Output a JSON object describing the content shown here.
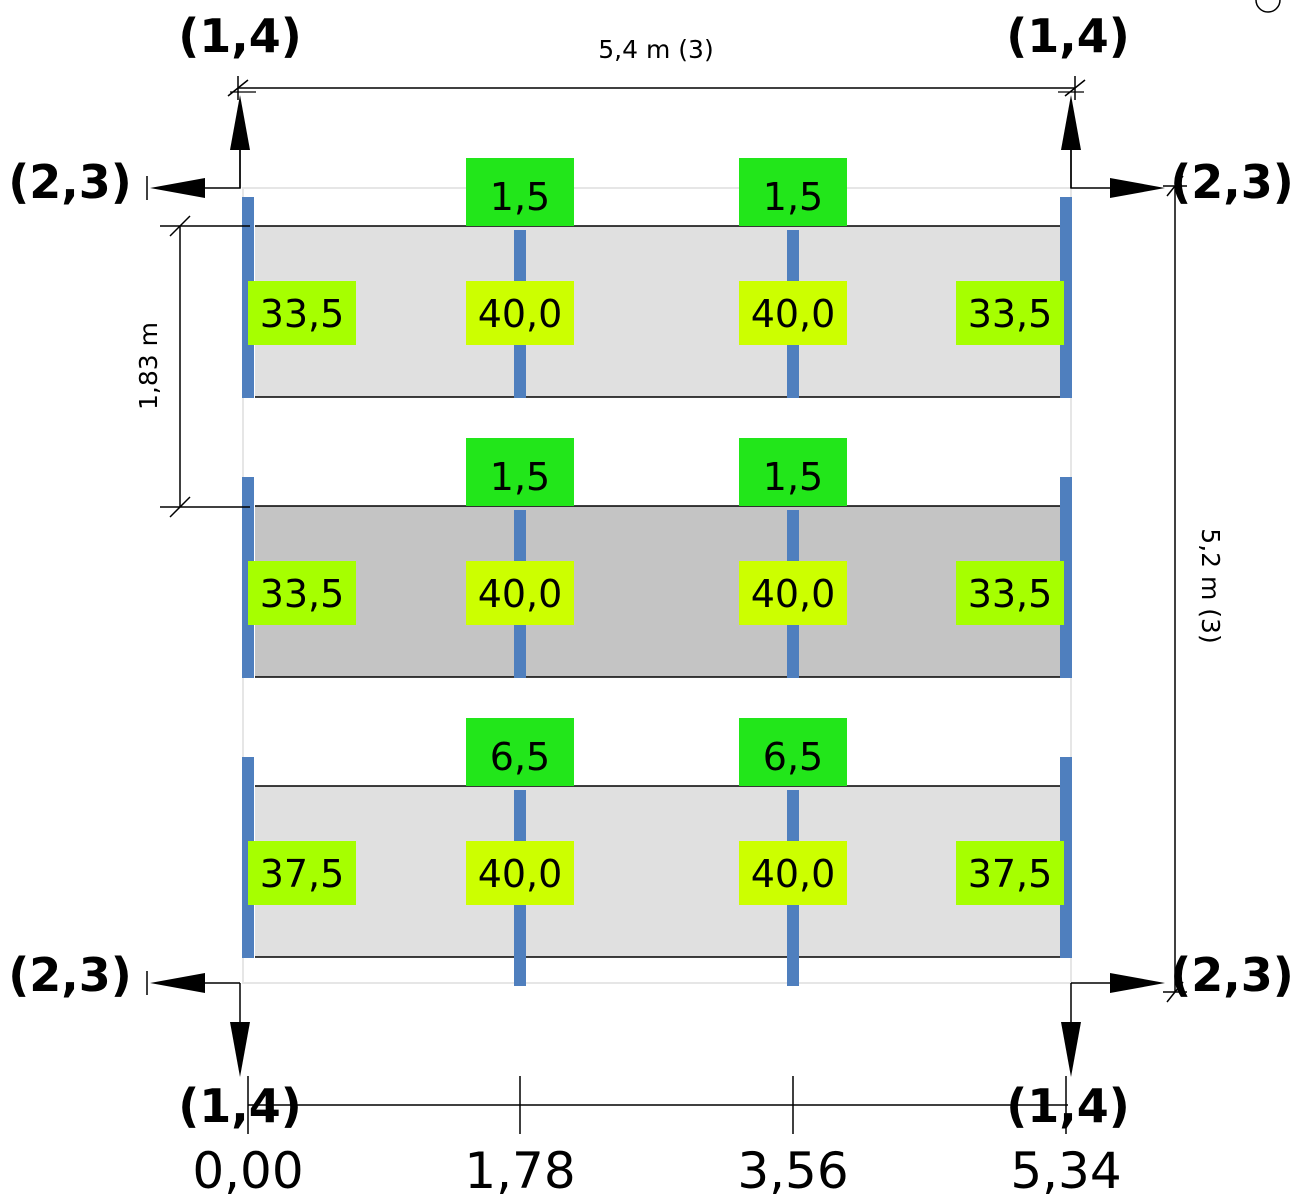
{
  "corner_labels": {
    "top_left_vertical": "(1,4)",
    "top_right_vertical": "(1,4)",
    "top_left_horizontal": "(2,3)",
    "top_right_horizontal": "(2,3)",
    "bottom_left_horizontal": "(2,3)",
    "bottom_right_horizontal": "(2,3)",
    "bottom_left_vertical": "(1,4)",
    "bottom_right_vertical": "(1,4)"
  },
  "dimensions": {
    "width_label": "5,4 m (3)",
    "height_label": "5,2 m (3)",
    "spacing_label": "1,83 m"
  },
  "strips": [
    {
      "shade": "#e0e0e0",
      "edge_loads": [
        "33,5",
        "33,5"
      ],
      "mid_loads": [
        "40,0",
        "40,0"
      ],
      "top_loads": [
        "1,5",
        "1,5"
      ]
    },
    {
      "shade": "#c4c4c4",
      "edge_loads": [
        "33,5",
        "33,5"
      ],
      "mid_loads": [
        "40,0",
        "40,0"
      ],
      "top_loads": [
        "1,5",
        "1,5"
      ]
    },
    {
      "shade": "#e0e0e0",
      "edge_loads": [
        "37,5",
        "37,5"
      ],
      "mid_loads": [
        "40,0",
        "40,0"
      ],
      "top_loads": [
        "6,5",
        "6,5"
      ]
    }
  ],
  "axis_ticks": [
    "0,00",
    "1,78",
    "3,56",
    "5,34"
  ],
  "colors": {
    "support_post": "#4f7fbe",
    "top_load_box": "#22e61a",
    "edge_load_box": "#a6ff00",
    "mid_load_box": "#ccff00"
  }
}
